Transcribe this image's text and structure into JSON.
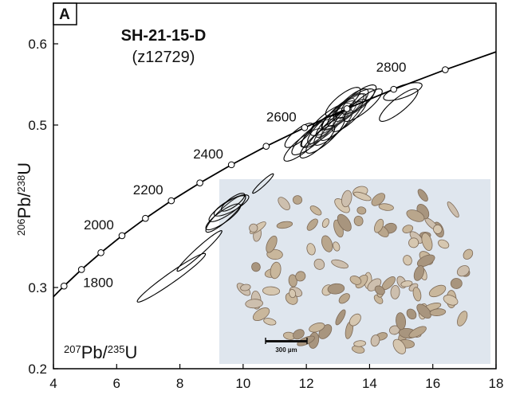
{
  "chart_data": {
    "type": "concordia",
    "panel_label": "A",
    "title": "SH-21-15-D",
    "subtitle": "(z12729)",
    "x_label": [
      "207",
      "Pb/",
      "235",
      "U"
    ],
    "y_label": [
      "206",
      "Pb/",
      "238",
      "U"
    ],
    "xlim": [
      4,
      18
    ],
    "ylim": [
      0.2,
      0.65
    ],
    "xticks": [
      4,
      6,
      8,
      10,
      12,
      14,
      16,
      18
    ],
    "yticks": [
      0.2,
      0.3,
      0.5,
      0.6
    ],
    "curve": {
      "x": [
        4.0,
        4.335,
        4.887,
        5.502,
        6.169,
        6.91,
        7.728,
        8.632,
        9.63,
        10.729,
        11.944,
        13.284,
        14.763,
        16.394,
        18.0
      ],
      "y": [
        0.2886,
        0.3018,
        0.3221,
        0.3428,
        0.3638,
        0.3851,
        0.4068,
        0.4287,
        0.4511,
        0.4738,
        0.4968,
        0.5202,
        0.544,
        0.5681,
        0.5901
      ],
      "color": "#000000"
    },
    "age_markers": {
      "x": [
        4.335,
        4.887,
        5.502,
        6.169,
        6.91,
        7.728,
        8.632,
        9.63,
        10.729,
        11.944,
        13.284,
        14.763,
        16.394
      ],
      "y": [
        0.3018,
        0.3221,
        0.3428,
        0.3638,
        0.3851,
        0.4068,
        0.4287,
        0.4511,
        0.4738,
        0.4968,
        0.5202,
        0.544,
        0.5681
      ],
      "labels": [
        null,
        1800,
        null,
        2000,
        null,
        2200,
        null,
        2400,
        null,
        2600,
        null,
        2800,
        null
      ]
    },
    "ellipses": {
      "x": [
        7.73,
        8.62,
        10.63,
        9.45,
        9.5,
        9.63,
        9.37,
        9.68,
        11.9,
        12.2,
        12.4,
        12.53,
        12.65,
        12.78,
        12.91,
        13.03,
        13.16,
        13.28,
        13.41,
        13.54,
        12.85,
        13.11,
        13.36,
        12.6,
        13.66,
        13.79,
        12.35,
        13.16,
        11.77,
        14.92,
        15.05
      ],
      "y": [
        0.312,
        0.345,
        0.428,
        0.391,
        0.397,
        0.401,
        0.387,
        0.405,
        0.4755,
        0.4853,
        0.4922,
        0.4971,
        0.499,
        0.5069,
        0.5088,
        0.5118,
        0.5167,
        0.5186,
        0.5245,
        0.5265,
        0.4971,
        0.5049,
        0.5118,
        0.4873,
        0.5314,
        0.5245,
        0.4794,
        0.5284,
        0.4873,
        0.5245,
        0.5412
      ],
      "x_err": [
        1.08,
        0.71,
        0.33,
        0.63,
        0.58,
        0.55,
        0.55,
        0.37,
        0.61,
        0.66,
        0.55,
        0.71,
        0.61,
        0.66,
        0.61,
        0.55,
        0.66,
        0.61,
        0.55,
        0.61,
        0.61,
        0.66,
        0.55,
        0.61,
        0.55,
        0.61,
        0.55,
        0.55,
        0.45,
        0.61,
        0.61
      ],
      "y_err": [
        0.03,
        0.025,
        0.012,
        0.023,
        0.016,
        0.013,
        0.016,
        0.011,
        0.02,
        0.022,
        0.02,
        0.024,
        0.022,
        0.02,
        0.024,
        0.018,
        0.022,
        0.02,
        0.02,
        0.018,
        0.022,
        0.024,
        0.02,
        0.022,
        0.018,
        0.02,
        0.02,
        0.018,
        0.015,
        0.02,
        0.011
      ],
      "rho": [
        0.97,
        0.97,
        0.95,
        0.9,
        0.85,
        0.8,
        0.85,
        0.8,
        0.85,
        0.85,
        0.8,
        0.9,
        0.85,
        0.8,
        0.9,
        0.8,
        0.85,
        0.85,
        0.8,
        0.8,
        0.85,
        0.9,
        0.85,
        0.85,
        0.8,
        0.85,
        0.85,
        0.8,
        0.8,
        0.85,
        0.7
      ]
    },
    "inset": {
      "scale_bar_label": "300 µm"
    }
  }
}
